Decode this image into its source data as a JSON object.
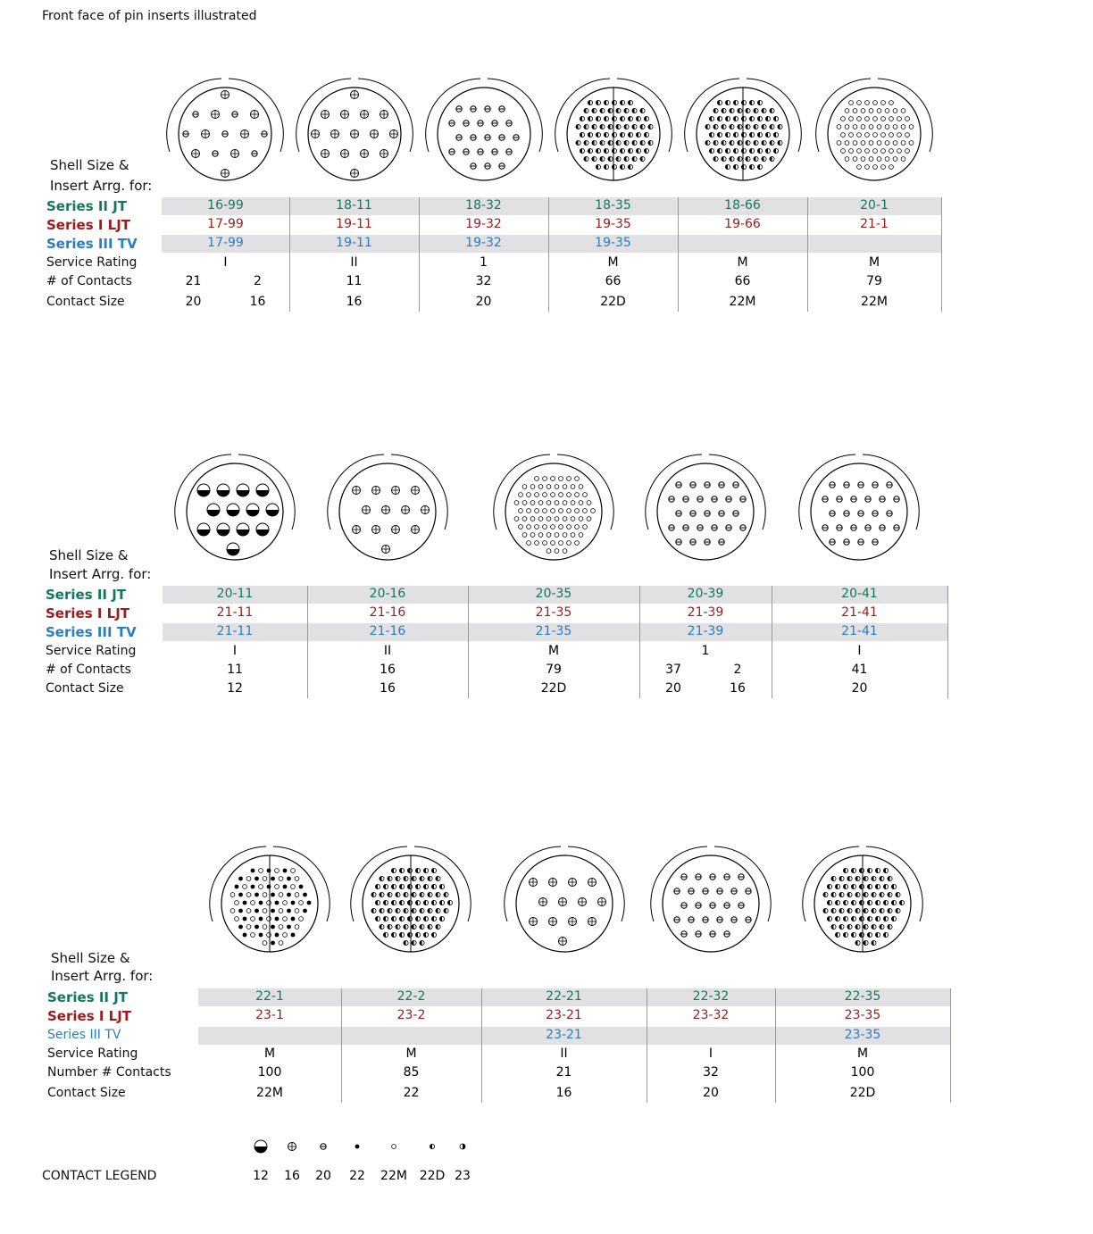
{
  "header": {
    "title": "Front face of pin inserts illustrated"
  },
  "sections": [
    {
      "heading": [
        "Shell Size &",
        "Insert Arrg. for:"
      ],
      "row_labels": [
        "Series II JT",
        "Series I LJT",
        "Series III TV",
        "Service Rating",
        "# of Contacts",
        "Contact Size"
      ],
      "columns": [
        {
          "jt": "16-99",
          "ljt": "17-99",
          "tv": "17-99",
          "rating": "I",
          "contacts": [
            21,
            2
          ],
          "sizes": [
            20,
            16
          ]
        },
        {
          "jt": "18-11",
          "ljt": "19-11",
          "tv": "19-11",
          "rating": "II",
          "contacts": [
            11
          ],
          "sizes": [
            16
          ]
        },
        {
          "jt": "18-32",
          "ljt": "19-32",
          "tv": "19-32",
          "rating": "1",
          "contacts": [
            32
          ],
          "sizes": [
            20
          ]
        },
        {
          "jt": "18-35",
          "ljt": "19-35",
          "tv": "19-35",
          "rating": "M",
          "contacts": [
            66
          ],
          "sizes": [
            "22D"
          ]
        },
        {
          "jt": "18-66",
          "ljt": "19-66",
          "tv": null,
          "rating": "M",
          "contacts": [
            66
          ],
          "sizes": [
            "22M"
          ]
        },
        {
          "jt": "20-1",
          "ljt": "21-1",
          "tv": null,
          "rating": "M",
          "contacts": [
            79
          ],
          "sizes": [
            "22M"
          ]
        }
      ]
    },
    {
      "heading": [
        "Shell Size &",
        "Insert Arrg. for:"
      ],
      "row_labels": [
        "Series II JT",
        "Series I LJT",
        "Series III TV",
        "Service Rating",
        "# of Contacts",
        "Contact Size"
      ],
      "columns": [
        {
          "jt": "20-11",
          "ljt": "21-11",
          "tv": "21-11",
          "rating": "I",
          "contacts": [
            11
          ],
          "sizes": [
            12
          ]
        },
        {
          "jt": "20-16",
          "ljt": "21-16",
          "tv": "21-16",
          "rating": "II",
          "contacts": [
            16
          ],
          "sizes": [
            16
          ]
        },
        {
          "jt": "20-35",
          "ljt": "21-35",
          "tv": "21-35",
          "rating": "M",
          "contacts": [
            79
          ],
          "sizes": [
            "22D"
          ]
        },
        {
          "jt": "20-39",
          "ljt": "21-39",
          "tv": "21-39",
          "rating": "1",
          "contacts": [
            37,
            2
          ],
          "sizes": [
            20,
            16
          ]
        },
        {
          "jt": "20-41",
          "ljt": "21-41",
          "tv": "21-41",
          "rating": "I",
          "contacts": [
            41
          ],
          "sizes": [
            20
          ]
        }
      ]
    },
    {
      "heading": [
        "Shell Size &",
        "Insert Arrg. for:"
      ],
      "row_labels": [
        "Series II JT",
        "Series I LJT",
        "Series III TV",
        "Service Rating",
        "Number # Contacts",
        "Contact Size"
      ],
      "columns": [
        {
          "jt": "22-1",
          "ljt": "23-1",
          "tv": null,
          "rating": "M",
          "contacts": [
            100
          ],
          "sizes": [
            "22M"
          ]
        },
        {
          "jt": "22-2",
          "ljt": "23-2",
          "tv": null,
          "rating": "M",
          "contacts": [
            85
          ],
          "sizes": [
            22
          ]
        },
        {
          "jt": "22-21",
          "ljt": "23-21",
          "tv": "23-21",
          "rating": "II",
          "contacts": [
            21
          ],
          "sizes": [
            16
          ]
        },
        {
          "jt": "22-32",
          "ljt": "23-32",
          "tv": null,
          "rating": "I",
          "contacts": [
            32
          ],
          "sizes": [
            20
          ]
        },
        {
          "jt": "22-35",
          "ljt": "23-35",
          "tv": "23-35",
          "rating": "M",
          "contacts": [
            100
          ],
          "sizes": [
            "22D"
          ]
        }
      ]
    }
  ],
  "legend": {
    "title": "CONTACT LEGEND",
    "sizes": [
      "12",
      "16",
      "20",
      "22",
      "22M",
      "22D",
      "23"
    ]
  }
}
